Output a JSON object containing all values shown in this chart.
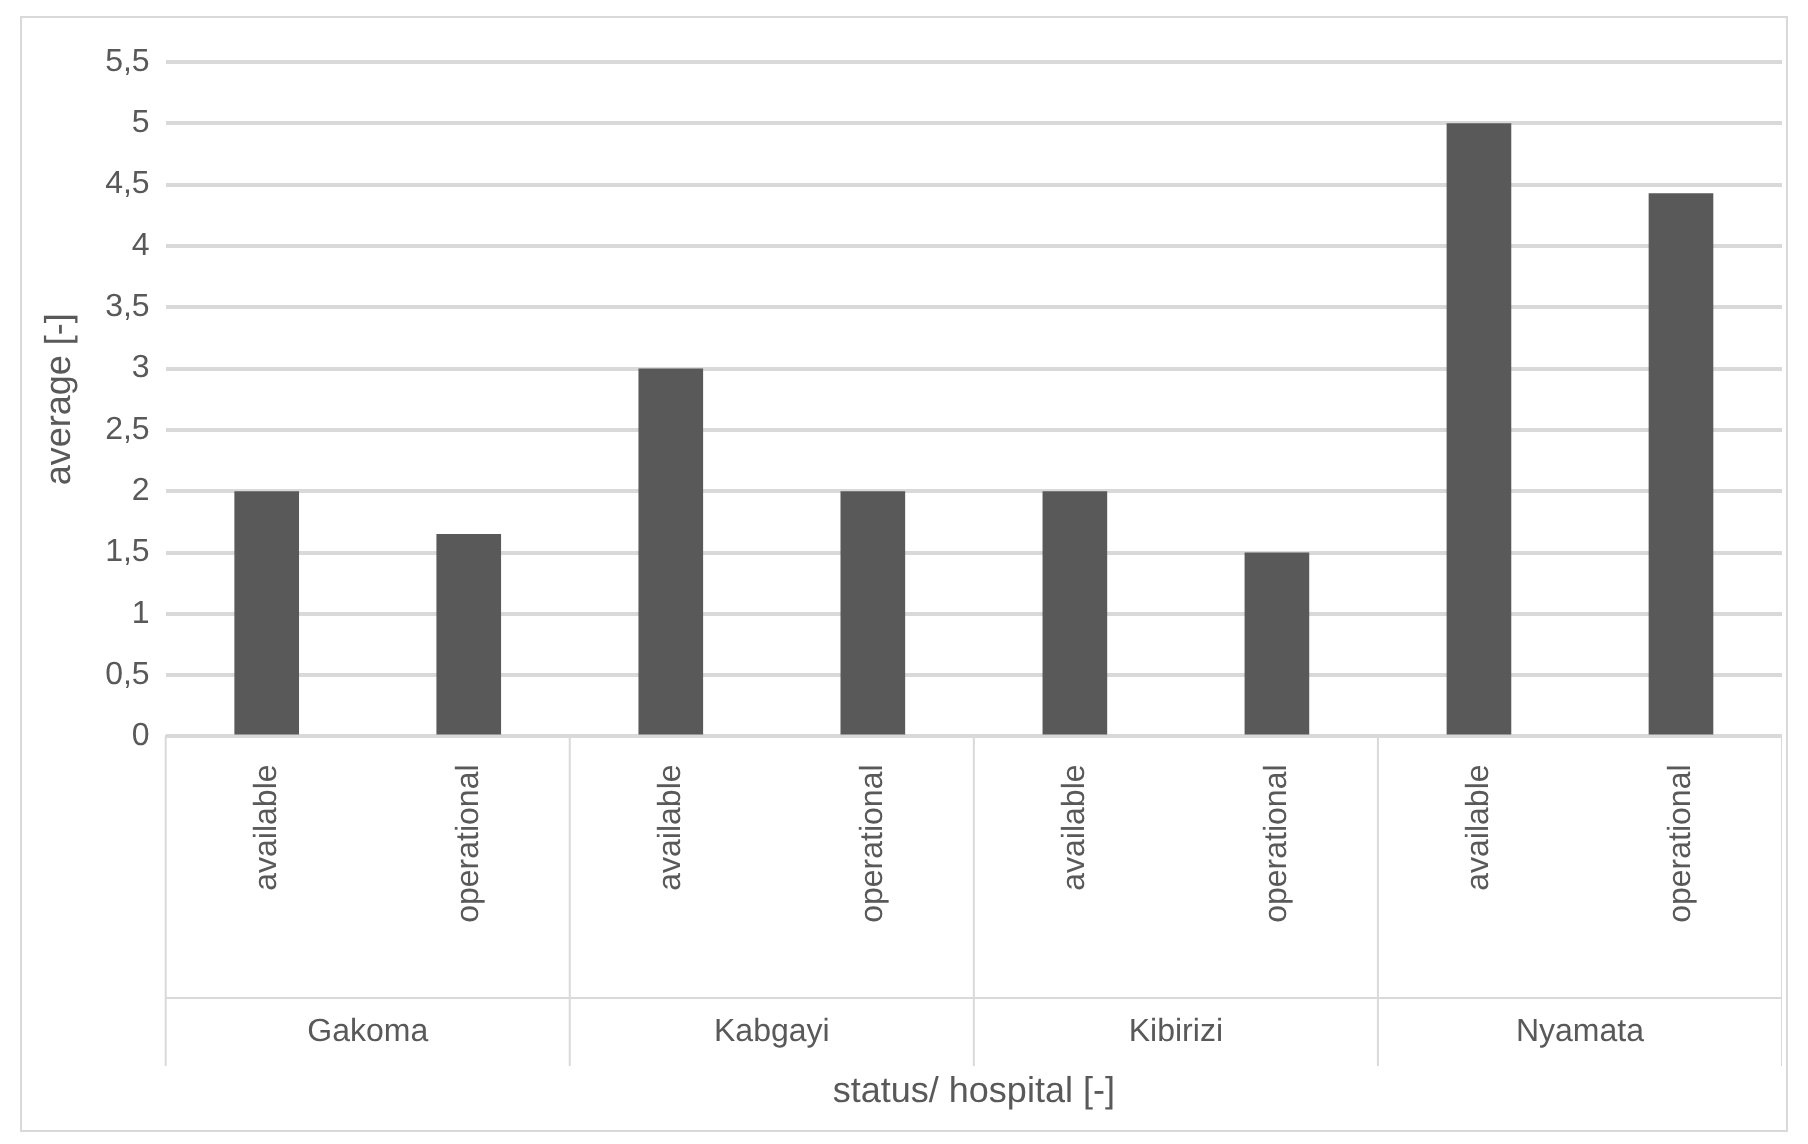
{
  "chart_data": {
    "type": "bar",
    "xlabel": "status/ hospital [-]",
    "ylabel": "average [-]",
    "categories": [
      "available",
      "operational",
      "available",
      "operational",
      "available",
      "operational",
      "available",
      "operational"
    ],
    "annotations": [
      "Gakoma",
      "Kabgayi",
      "Kibirizi",
      "Nyamata"
    ],
    "series": [
      {
        "color": "#595959",
        "values": [
          2,
          1.65,
          3,
          2,
          2,
          1.5,
          5,
          4.43
        ]
      }
    ],
    "ylim": [
      0,
      5.5
    ],
    "yticks": [
      0,
      {
        "value": 0.5,
        "label": "0,5"
      },
      1,
      {
        "value": 1.5,
        "label": "1,5"
      },
      2,
      {
        "value": 2.5,
        "label": "2,5"
      },
      3,
      {
        "value": 3.5,
        "label": "3,5"
      },
      4,
      {
        "value": 4.5,
        "label": "4,5"
      },
      5,
      {
        "value": 5.5,
        "label": "5,5"
      }
    ],
    "grid": "y",
    "legend": false
  }
}
